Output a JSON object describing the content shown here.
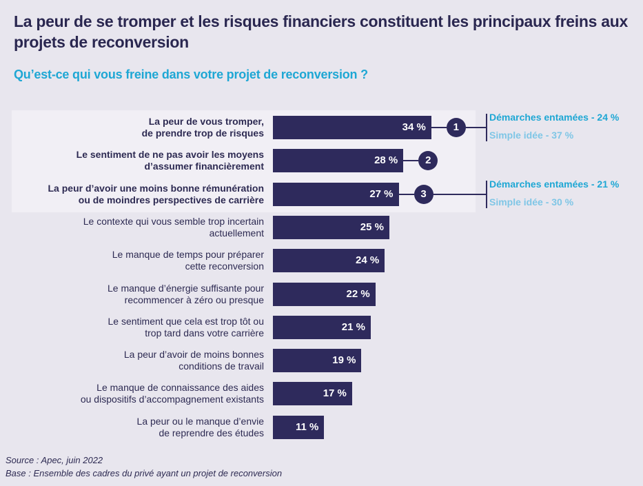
{
  "header": {
    "title": "La peur de se tromper et les risques financiers constituent les principaux freins aux projets de reconversion",
    "subtitle": "Qu’est-ce qui vous freine dans votre projet de reconversion ?"
  },
  "colors": {
    "bar": "#2e2a5c",
    "title": "#2a2750",
    "subtitle": "#1ea7d4",
    "detail_primary": "#1ea7d4",
    "detail_secondary": "#7fc6e6",
    "background": "#e8e6ee",
    "highlight": "#f1eff5"
  },
  "chart_data": {
    "type": "bar",
    "orientation": "horizontal",
    "title": "La peur de se tromper et les risques financiers constituent les principaux freins aux projets de reconversion",
    "subtitle": "Qu’est-ce qui vous freine dans votre projet de reconversion ?",
    "unit": "%",
    "xlim": [
      0,
      34
    ],
    "categories": [
      {
        "line1": "La peur de vous tromper,",
        "line2": "de prendre trop de risques",
        "highlighted": true
      },
      {
        "line1": "Le sentiment de ne pas avoir les moyens",
        "line2": "d’assumer financièrement",
        "highlighted": true
      },
      {
        "line1": "La peur d’avoir une moins bonne rémunération",
        "line2": "ou de moindres perspectives de carrière",
        "highlighted": true
      },
      {
        "line1": "Le contexte qui vous semble trop incertain",
        "line2": "actuellement",
        "highlighted": false
      },
      {
        "line1": "Le manque de temps pour préparer",
        "line2": "cette reconversion",
        "highlighted": false
      },
      {
        "line1": "Le manque d’énergie suffisante pour",
        "line2": "recommencer à zéro ou presque",
        "highlighted": false
      },
      {
        "line1": "Le sentiment que cela est trop tôt ou",
        "line2": "trop tard dans votre carrière",
        "highlighted": false
      },
      {
        "line1": "La peur d’avoir de moins bonnes",
        "line2": "conditions de travail",
        "highlighted": false
      },
      {
        "line1": "Le manque de connaissance des aides",
        "line2": "ou dispositifs d’accompagnement existants",
        "highlighted": false
      },
      {
        "line1": "La peur ou le manque d’envie",
        "line2": "de reprendre des études",
        "highlighted": false
      }
    ],
    "values": [
      34,
      28,
      27,
      25,
      24,
      22,
      21,
      19,
      17,
      11
    ],
    "value_labels": [
      "34 %",
      "28 %",
      "27 %",
      "25 %",
      "24 %",
      "22 %",
      "21 %",
      "19 %",
      "17 %",
      "11 %"
    ],
    "ranks": [
      {
        "index": 0,
        "label": "1",
        "details": [
          "Démarches entamées - 24 %",
          "Simple idée - 37 %"
        ]
      },
      {
        "index": 1,
        "label": "2",
        "details": []
      },
      {
        "index": 2,
        "label": "3",
        "details": [
          "Démarches entamées - 21 %",
          "Simple idée - 30 %"
        ]
      }
    ]
  },
  "footer": {
    "source": "Source : Apec, juin 2022",
    "base": "Base : Ensemble des cadres du privé ayant un projet de reconversion"
  }
}
